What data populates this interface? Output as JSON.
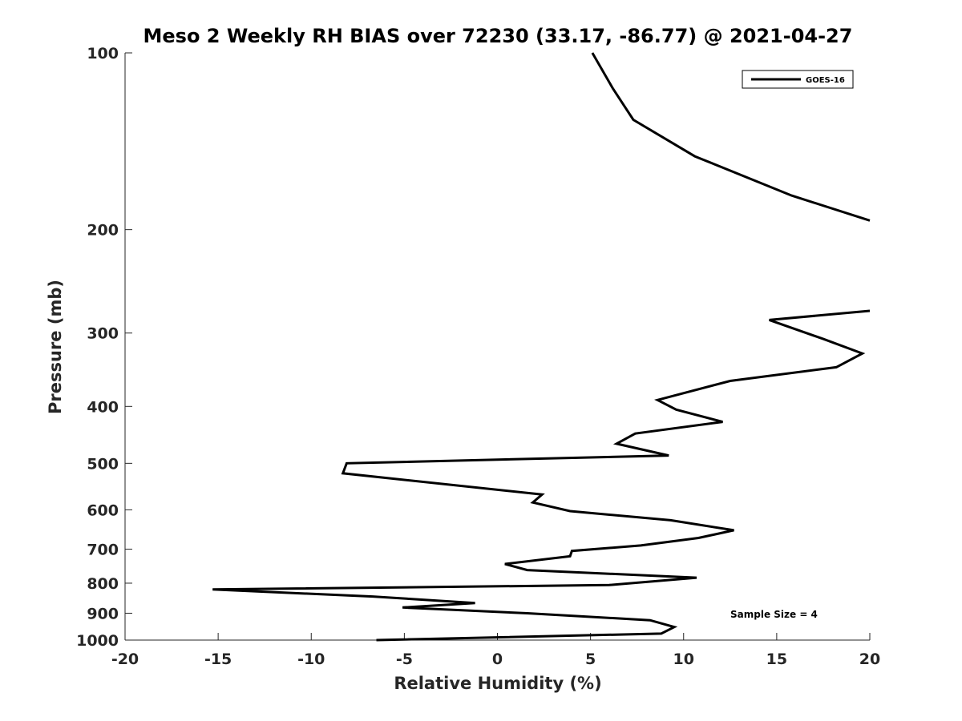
{
  "chart_data": {
    "type": "line",
    "title": "Meso 2 Weekly RH BIAS over 72230 (33.17, -86.77) @ 2021-04-27",
    "xlabel": "Relative Humidity (%)",
    "ylabel": "Pressure (mb)",
    "xlim": [
      -20,
      20
    ],
    "ylim": [
      100,
      1000
    ],
    "y_scale": "log",
    "y_reversed": true,
    "grid": false,
    "legend_position": "top-right",
    "x_ticks": [
      -20,
      -15,
      -10,
      -5,
      0,
      5,
      10,
      15,
      20
    ],
    "x_tick_labels": [
      "-20",
      "-15",
      "-10",
      "-5",
      "0",
      "5",
      "10",
      "15",
      "20"
    ],
    "y_ticks": [
      100,
      200,
      300,
      400,
      500,
      600,
      700,
      800,
      900,
      1000
    ],
    "y_tick_labels": [
      "100",
      "200",
      "300",
      "400",
      "500",
      "600",
      "700",
      "800",
      "900",
      "1000"
    ],
    "series": [
      {
        "name": "GOES-16",
        "color": "#000000",
        "segments": [
          [
            {
              "x": 5.1,
              "y": 100
            },
            {
              "x": 6.2,
              "y": 115
            },
            {
              "x": 7.3,
              "y": 130
            },
            {
              "x": 10.6,
              "y": 150
            },
            {
              "x": 15.8,
              "y": 175
            },
            {
              "x": 20.0,
              "y": 193
            }
          ],
          [
            {
              "x": 20.0,
              "y": 275
            },
            {
              "x": 14.6,
              "y": 285
            },
            {
              "x": 17.5,
              "y": 307
            },
            {
              "x": 19.6,
              "y": 325
            },
            {
              "x": 18.2,
              "y": 343
            },
            {
              "x": 12.5,
              "y": 362
            },
            {
              "x": 8.6,
              "y": 390
            },
            {
              "x": 9.6,
              "y": 405
            },
            {
              "x": 12.1,
              "y": 425
            },
            {
              "x": 7.4,
              "y": 445
            },
            {
              "x": 6.4,
              "y": 463
            },
            {
              "x": 9.2,
              "y": 485
            },
            {
              "x": -8.1,
              "y": 500
            },
            {
              "x": -8.3,
              "y": 520
            },
            {
              "x": 2.4,
              "y": 565
            },
            {
              "x": 1.9,
              "y": 583
            },
            {
              "x": 3.9,
              "y": 603
            },
            {
              "x": 9.3,
              "y": 625
            },
            {
              "x": 12.7,
              "y": 650
            },
            {
              "x": 10.8,
              "y": 670
            },
            {
              "x": 7.7,
              "y": 690
            },
            {
              "x": 4.0,
              "y": 705
            },
            {
              "x": 3.9,
              "y": 720
            },
            {
              "x": 0.4,
              "y": 742
            },
            {
              "x": 1.6,
              "y": 760
            },
            {
              "x": 10.7,
              "y": 783
            },
            {
              "x": 6.0,
              "y": 806
            },
            {
              "x": -15.3,
              "y": 820
            },
            {
              "x": -6.7,
              "y": 843
            },
            {
              "x": -1.2,
              "y": 865
            },
            {
              "x": -5.1,
              "y": 880
            },
            {
              "x": 1.6,
              "y": 900
            },
            {
              "x": 8.2,
              "y": 925
            },
            {
              "x": 9.5,
              "y": 950
            },
            {
              "x": 8.8,
              "y": 975
            },
            {
              "x": -6.5,
              "y": 1000
            }
          ]
        ]
      }
    ],
    "annotation": "Sample Size = 4"
  }
}
